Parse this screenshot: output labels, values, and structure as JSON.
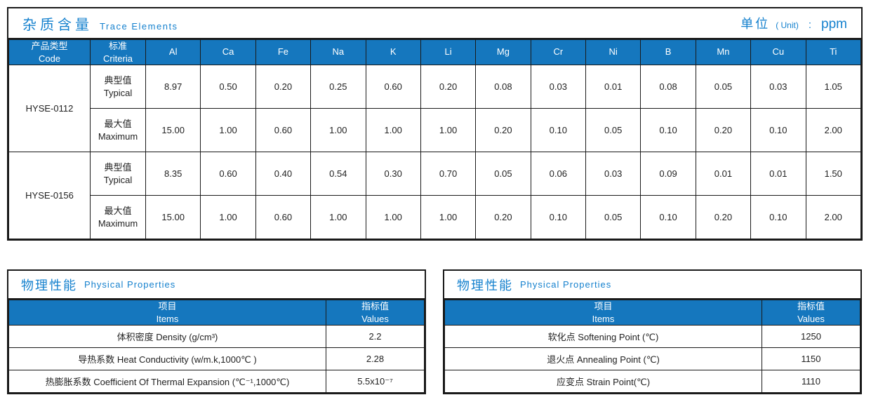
{
  "colors": {
    "header_blue": "#1577BE",
    "accent_text_blue": "#1581CE",
    "border_black": "#1A1A1A"
  },
  "trace": {
    "title_zh": "杂质含量",
    "title_en": "Trace Elements",
    "unit": {
      "zh": "单位",
      "en": "( Unit)",
      "colon": ":",
      "value": "ppm"
    },
    "header": {
      "product_zh": "产品类型",
      "product_en": "Code",
      "criteria_zh": "标准",
      "criteria_en": "Criteria"
    },
    "elements": [
      "Al",
      "Ca",
      "Fe",
      "Na",
      "K",
      "Li",
      "Mg",
      "Cr",
      "Ni",
      "B",
      "Mn",
      "Cu",
      "Ti"
    ],
    "row_labels": {
      "typical_zh": "典型值",
      "typical_en": "Typical",
      "maximum_zh": "最大值",
      "maximum_en": "Maximum"
    },
    "products": [
      {
        "code": "HYSE-0112",
        "typical": [
          "8.97",
          "0.50",
          "0.20",
          "0.25",
          "0.60",
          "0.20",
          "0.08",
          "0.03",
          "0.01",
          "0.08",
          "0.05",
          "0.03",
          "1.05"
        ],
        "maximum": [
          "15.00",
          "1.00",
          "0.60",
          "1.00",
          "1.00",
          "1.00",
          "0.20",
          "0.10",
          "0.05",
          "0.10",
          "0.20",
          "0.10",
          "2.00"
        ]
      },
      {
        "code": "HYSE-0156",
        "typical": [
          "8.35",
          "0.60",
          "0.40",
          "0.54",
          "0.30",
          "0.70",
          "0.05",
          "0.06",
          "0.03",
          "0.09",
          "0.01",
          "0.01",
          "1.50"
        ],
        "maximum": [
          "15.00",
          "1.00",
          "0.60",
          "1.00",
          "1.00",
          "1.00",
          "0.20",
          "0.10",
          "0.05",
          "0.10",
          "0.20",
          "0.10",
          "2.00"
        ]
      }
    ]
  },
  "physical_left": {
    "title_zh": "物理性能",
    "title_en": "Physical Properties",
    "col_items_zh": "项目",
    "col_items_en": "Items",
    "col_values_zh": "指标值",
    "col_values_en": "Values",
    "rows": [
      {
        "item": "体积密度 Density (g/cm³)",
        "value": "2.2"
      },
      {
        "item": "导热系数 Heat Conductivity (w/m.k,1000℃ )",
        "value": "2.28"
      },
      {
        "item": "热膨胀系数 Coefficient Of Thermal Expansion (℃⁻¹,1000℃)",
        "value": "5.5x10⁻⁷"
      }
    ]
  },
  "physical_right": {
    "title_zh": "物理性能",
    "title_en": "Physical Properties",
    "col_items_zh": "项目",
    "col_items_en": "Items",
    "col_values_zh": "指标值",
    "col_values_en": "Values",
    "rows": [
      {
        "item": "软化点 Softening Point (℃)",
        "value": "1250"
      },
      {
        "item": "退火点 Annealing Point (℃)",
        "value": "1150"
      },
      {
        "item": "应变点 Strain Point(℃)",
        "value": "1110"
      }
    ]
  }
}
